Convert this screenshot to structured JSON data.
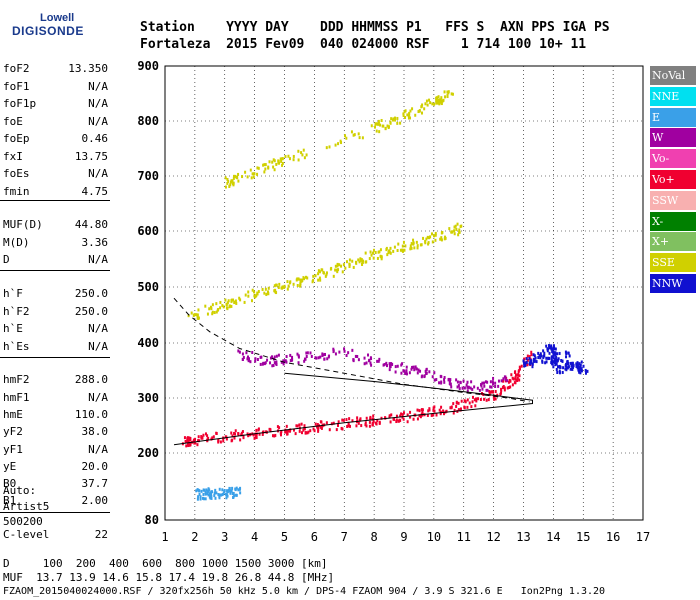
{
  "brand": {
    "line1": "Lowell",
    "line2": "DIGISONDE"
  },
  "header": {
    "row1": "Station    YYYY DAY    DDD HHMMSS P1   FFS S  AXN PPS IGA PS",
    "row2": "Fortaleza  2015 Fev09  040 024000 RSF    1 714 100 10+ 11"
  },
  "params": [
    {
      "name": "foF2",
      "value": "13.350"
    },
    {
      "name": "foF1",
      "value": "N/A"
    },
    {
      "name": "foF1p",
      "value": "N/A"
    },
    {
      "name": "foE",
      "value": "N/A"
    },
    {
      "name": "foEp",
      "value": "0.46"
    },
    {
      "name": "fxI",
      "value": "13.75"
    },
    {
      "name": "foEs",
      "value": "N/A"
    },
    {
      "name": "fmin",
      "value": "4.75"
    },
    {
      "name": "MUF(D)",
      "value": "44.80"
    },
    {
      "name": "M(D)",
      "value": "3.36"
    },
    {
      "name": "D",
      "value": "N/A"
    },
    {
      "name": "h`F",
      "value": "250.0"
    },
    {
      "name": "h`F2",
      "value": "250.0"
    },
    {
      "name": "h`E",
      "value": "N/A"
    },
    {
      "name": "h`Es",
      "value": "N/A"
    },
    {
      "name": "hmF2",
      "value": "288.0"
    },
    {
      "name": "hmF1",
      "value": "N/A"
    },
    {
      "name": "hmE",
      "value": "110.0"
    },
    {
      "name": "yF2",
      "value": "38.0"
    },
    {
      "name": "yF1",
      "value": "N/A"
    },
    {
      "name": "yE",
      "value": "20.0"
    },
    {
      "name": "B0",
      "value": "37.7"
    },
    {
      "name": "B1",
      "value": "2.00"
    },
    {
      "name": "C-level",
      "value": "22"
    }
  ],
  "auto": {
    "line1": "Auto:",
    "line2": "Artist5",
    "line3": "500200"
  },
  "footer": {
    "line1": "D     100  200  400  600  800 1000 1500 3000 [km]",
    "line2": "MUF  13.7 13.9 14.6 15.8 17.4 19.8 26.8 44.8 [MHz]",
    "line3": "FZAOM_2015040024000.RSF / 320fx256h 50 kHz 5.0 km / DPS-4 FZAOM 904 / 3.9 S 321.6 E   Ion2Png 1.3.20"
  },
  "legend": [
    {
      "label": "NoVal",
      "color": "#808080"
    },
    {
      "label": "NNE",
      "color": "#00e0f0"
    },
    {
      "label": "E",
      "color": "#3aa0e8"
    },
    {
      "label": "W",
      "color": "#a000a0"
    },
    {
      "label": "Vo-",
      "color": "#f040b0"
    },
    {
      "label": "Vo+",
      "color": "#f00030"
    },
    {
      "label": "SSW",
      "color": "#f8b0b0"
    },
    {
      "label": "X-",
      "color": "#008000"
    },
    {
      "label": "X+",
      "color": "#80c060"
    },
    {
      "label": "SSE",
      "color": "#d0d000"
    },
    {
      "label": "NNW",
      "color": "#1010d0"
    }
  ],
  "chart_data": {
    "type": "scatter",
    "xlim": [
      1,
      17
    ],
    "ylim": [
      80,
      900
    ],
    "x_ticks": [
      "1",
      "2",
      "3",
      "4",
      "5",
      "6",
      "7",
      "8",
      "9",
      "10",
      "11",
      "12",
      "13",
      "14",
      "15",
      "16",
      "17"
    ],
    "y_ticks": [
      "80",
      "200",
      "300",
      "400",
      "500",
      "600",
      "700",
      "800",
      "900"
    ],
    "y_tick_values": [
      80,
      200,
      300,
      400,
      500,
      600,
      700,
      800,
      900
    ],
    "grid": true,
    "series": [
      {
        "name": "F2 trace",
        "color": "#f00030",
        "points": [
          [
            1.6,
            222
          ],
          [
            2,
            226
          ],
          [
            3,
            232
          ],
          [
            4,
            238
          ],
          [
            5,
            244
          ],
          [
            6,
            250
          ],
          [
            7,
            256
          ],
          [
            8,
            262
          ],
          [
            9,
            268
          ],
          [
            10,
            278
          ],
          [
            11,
            290
          ],
          [
            12,
            310
          ],
          [
            12.7,
            340
          ],
          [
            13.2,
            380
          ]
        ]
      },
      {
        "name": "W cloud",
        "color": "#a000a0",
        "points": [
          [
            3.5,
            380
          ],
          [
            4.5,
            370
          ],
          [
            5.5,
            375
          ],
          [
            7,
            385
          ],
          [
            8.5,
            360
          ],
          [
            9.5,
            350
          ],
          [
            10.5,
            330
          ],
          [
            11.5,
            320
          ],
          [
            12.5,
            340
          ]
        ]
      },
      {
        "name": "NNW cluster",
        "color": "#1010d0",
        "points": [
          [
            13,
            360
          ],
          [
            13.5,
            380
          ],
          [
            14,
            370
          ],
          [
            14.5,
            360
          ],
          [
            15,
            355
          ],
          [
            13.8,
            400
          ],
          [
            14.2,
            350
          ]
        ]
      },
      {
        "name": "2nd hop",
        "color": "#d0d000",
        "points": [
          [
            1.8,
            450
          ],
          [
            3,
            470
          ],
          [
            4,
            490
          ],
          [
            5,
            505
          ],
          [
            6,
            520
          ],
          [
            7,
            540
          ],
          [
            8,
            560
          ],
          [
            9,
            575
          ],
          [
            10,
            590
          ],
          [
            11,
            610
          ]
        ]
      },
      {
        "name": "3rd hop",
        "color": "#d0d000",
        "points": [
          [
            3,
            690
          ],
          [
            4,
            710
          ],
          [
            5,
            730
          ],
          [
            8,
            790
          ],
          [
            9,
            810
          ],
          [
            10,
            835
          ],
          [
            10.5,
            850
          ]
        ]
      },
      {
        "name": "E sporadic low",
        "color": "#3aa0e8",
        "points": [
          [
            2,
            128
          ],
          [
            2.5,
            130
          ],
          [
            3,
            131
          ],
          [
            3.5,
            132
          ]
        ]
      }
    ],
    "profile_solid": [
      [
        1.3,
        215
      ],
      [
        4,
        235
      ],
      [
        7,
        255
      ],
      [
        10,
        272
      ],
      [
        12,
        283
      ],
      [
        13.3,
        290
      ],
      [
        13.3,
        296
      ],
      [
        12,
        305
      ],
      [
        10,
        318
      ],
      [
        8,
        330
      ],
      [
        6,
        340
      ],
      [
        5,
        345
      ]
    ],
    "profile_dashed": [
      [
        1.3,
        480
      ],
      [
        1.8,
        450
      ],
      [
        2.5,
        420
      ],
      [
        3.5,
        390
      ],
      [
        5,
        365
      ],
      [
        7,
        345
      ],
      [
        9,
        325
      ],
      [
        11,
        310
      ],
      [
        12.5,
        300
      ],
      [
        13.2,
        293
      ]
    ]
  }
}
